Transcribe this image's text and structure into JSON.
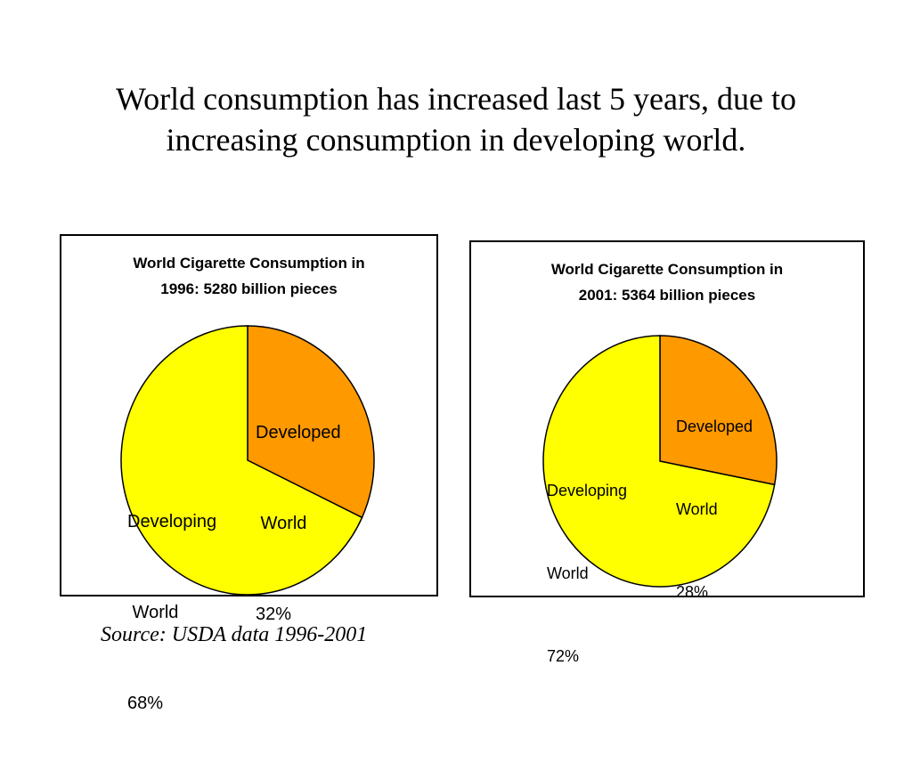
{
  "slide": {
    "title_lines": [
      "World consumption has increased last 5 years, due to",
      "increasing consumption in developing world."
    ],
    "source": "Source: USDA data 1996-2001"
  },
  "colors": {
    "developed": "#FF9900",
    "developing": "#FFFF00",
    "outline": "#000000"
  },
  "chart_data": [
    {
      "type": "pie",
      "title_lines": [
        "World Cigarette Consumption in",
        "1996: 5280 billion pieces"
      ],
      "slices": [
        {
          "name": "Developed World",
          "label_lines": [
            "Developed",
            " World",
            "32%"
          ],
          "value": 32,
          "color": "#FF9900"
        },
        {
          "name": "Developing World",
          "label_lines": [
            "Developing",
            " World",
            "68%"
          ],
          "value": 68,
          "color": "#FFFF00"
        }
      ]
    },
    {
      "type": "pie",
      "title_lines": [
        "World Cigarette Consumption in",
        "2001: 5364 billion pieces"
      ],
      "slices": [
        {
          "name": "Developed World",
          "label_lines": [
            "Developed",
            "World",
            "28%"
          ],
          "value": 28,
          "color": "#FF9900"
        },
        {
          "name": "Developing World",
          "label_lines": [
            "Developing",
            "World",
            "72%"
          ],
          "value": 72,
          "color": "#FFFF00"
        }
      ]
    }
  ]
}
